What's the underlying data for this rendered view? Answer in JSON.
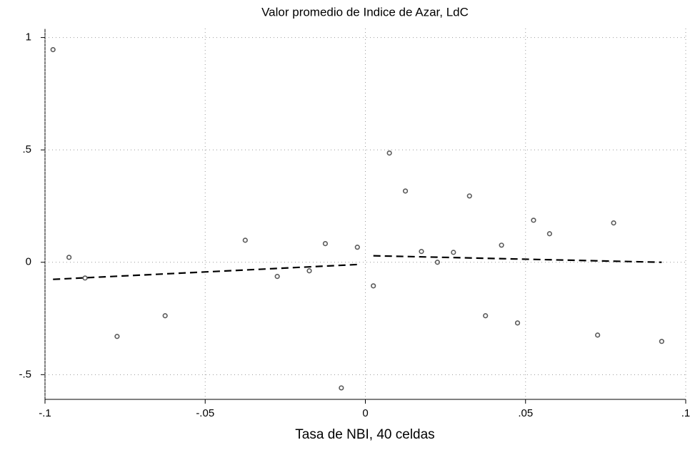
{
  "chart_data": {
    "type": "scatter",
    "title": "Valor promedio de Indice de Azar, LdC",
    "x_label": "Tasa de NBI, 40 celdas",
    "points": {
      "color": "#595959",
      "x": [
        -0.0975,
        -0.0925,
        -0.0875,
        -0.0775,
        -0.0625,
        -0.0375,
        -0.0275,
        -0.0175,
        -0.0125,
        -0.0075,
        -0.0025,
        0.0025,
        0.0075,
        0.0125,
        0.0175,
        0.0225,
        0.0275,
        0.0325,
        0.0375,
        0.0425,
        0.0475,
        0.0525,
        0.0575,
        0.0725,
        0.0775,
        0.0925
      ],
      "values": [
        0.946,
        0.022,
        -0.07,
        -0.33,
        -0.238,
        0.098,
        -0.063,
        -0.038,
        0.083,
        -0.559,
        0.067,
        -0.105,
        0.486,
        0.317,
        0.048,
        0.0,
        0.044,
        0.295,
        -0.238,
        0.076,
        -0.27,
        0.187,
        0.127,
        -0.324,
        0.175,
        -0.352
      ]
    },
    "fit_lines": [
      {
        "color": "#000000",
        "x": [
          -0.0975,
          -0.0025
        ],
        "values": [
          -0.076,
          -0.01
        ]
      },
      {
        "color": "#000000",
        "x": [
          0.0025,
          0.0925
        ],
        "values": [
          0.029,
          0.0
        ]
      }
    ],
    "xlim": [
      -0.1,
      0.1
    ],
    "ylim": [
      -0.61,
      1.04
    ],
    "xticks": [
      {
        "value": -0.1,
        "label": "-.1"
      },
      {
        "value": -0.05,
        "label": "-.05"
      },
      0,
      {
        "value": 0.05,
        "label": ".05"
      },
      {
        "value": 0.1,
        "label": ".1"
      }
    ],
    "yticks": [
      {
        "value": -0.5,
        "label": "-.5"
      },
      0,
      {
        "value": 0.5,
        "label": ".5"
      },
      1
    ],
    "grid": true
  }
}
